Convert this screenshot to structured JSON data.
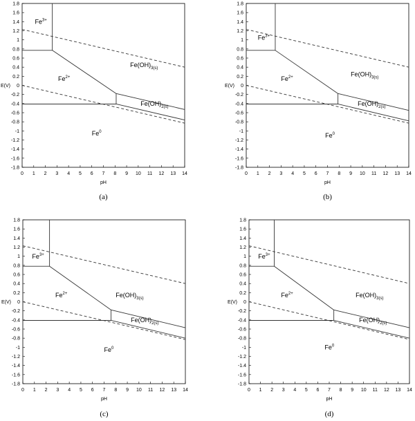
{
  "chart_data": [
    {
      "type": "line",
      "panel_label": "(a)",
      "xlabel": "pH",
      "ylabel": "E(V)",
      "xlim": [
        0,
        14
      ],
      "ylim": [
        -1.8,
        1.8
      ],
      "xticks": [
        0,
        1,
        2,
        3,
        4,
        5,
        6,
        7,
        8,
        9,
        10,
        11,
        12,
        13,
        14
      ],
      "yticks": [
        1.8,
        1.6,
        1.4,
        1.2,
        1,
        0.8,
        0.6,
        0.4,
        0.2,
        0,
        -0.2,
        -0.4,
        -0.6,
        -0.8,
        -1,
        -1.2,
        -1.4,
        -1.6,
        -1.8
      ],
      "grid": false,
      "series": [
        {
          "style": "solid",
          "points": [
            [
              2.6,
              1.8
            ],
            [
              2.6,
              0.77
            ]
          ]
        },
        {
          "style": "solid",
          "points": [
            [
              0,
              0.77
            ],
            [
              2.6,
              0.77
            ]
          ]
        },
        {
          "style": "solid",
          "points": [
            [
              2.6,
              0.77
            ],
            [
              8.1,
              -0.18
            ]
          ]
        },
        {
          "style": "solid",
          "points": [
            [
              8.1,
              -0.18
            ],
            [
              8.1,
              -0.41
            ]
          ]
        },
        {
          "style": "solid",
          "points": [
            [
              0,
              -0.41
            ],
            [
              8.1,
              -0.41
            ]
          ]
        },
        {
          "style": "solid",
          "points": [
            [
              8.1,
              -0.18
            ],
            [
              14,
              -0.53
            ]
          ]
        },
        {
          "style": "solid",
          "points": [
            [
              8.1,
              -0.41
            ],
            [
              14,
              -0.76
            ]
          ]
        },
        {
          "style": "dashed",
          "points": [
            [
              0,
              1.23
            ],
            [
              14,
              0.4
            ]
          ]
        },
        {
          "style": "dashed",
          "points": [
            [
              0,
              0.0
            ],
            [
              14,
              -0.83
            ]
          ]
        }
      ],
      "regions": [
        {
          "main": "Fe",
          "sup": "3+",
          "sub": "",
          "x": 1.1,
          "y": 1.35
        },
        {
          "main": "Fe",
          "sup": "2+",
          "sub": "",
          "x": 3.1,
          "y": 0.1
        },
        {
          "main": "Fe(OH)",
          "sup": "",
          "sub": "3(s)",
          "x": 9.3,
          "y": 0.4
        },
        {
          "main": "Fe(OH)",
          "sup": "",
          "sub": "2(s)",
          "x": 10.2,
          "y": -0.45
        },
        {
          "main": "Fe",
          "sup": "0",
          "sub": "",
          "x": 6.0,
          "y": -1.1
        }
      ]
    },
    {
      "type": "line",
      "panel_label": "(b)",
      "xlabel": "pH",
      "ylabel": "E(V)",
      "xlim": [
        0,
        14
      ],
      "ylim": [
        -1.8,
        1.8
      ],
      "xticks": [
        0,
        1,
        2,
        3,
        4,
        5,
        6,
        7,
        8,
        9,
        10,
        11,
        12,
        13,
        14
      ],
      "yticks": [
        1.8,
        1.6,
        1.4,
        1.2,
        1,
        0.8,
        0.6,
        0.4,
        0.2,
        0,
        -0.2,
        -0.4,
        -0.6,
        -0.8,
        -1,
        -1.2,
        -1.4,
        -1.6,
        -1.8
      ],
      "grid": false,
      "series": [
        {
          "style": "solid",
          "points": [
            [
              2.5,
              1.8
            ],
            [
              2.5,
              0.77
            ]
          ]
        },
        {
          "style": "solid",
          "points": [
            [
              0,
              0.77
            ],
            [
              2.5,
              0.77
            ]
          ]
        },
        {
          "style": "solid",
          "points": [
            [
              2.5,
              0.77
            ],
            [
              7.9,
              -0.18
            ]
          ]
        },
        {
          "style": "solid",
          "points": [
            [
              7.9,
              -0.18
            ],
            [
              7.9,
              -0.41
            ]
          ]
        },
        {
          "style": "solid",
          "points": [
            [
              0,
              -0.41
            ],
            [
              7.9,
              -0.41
            ]
          ]
        },
        {
          "style": "solid",
          "points": [
            [
              7.9,
              -0.18
            ],
            [
              14,
              -0.55
            ]
          ]
        },
        {
          "style": "solid",
          "points": [
            [
              7.9,
              -0.41
            ],
            [
              14,
              -0.78
            ]
          ]
        },
        {
          "style": "dashed",
          "points": [
            [
              0,
              1.23
            ],
            [
              14,
              0.4
            ]
          ]
        },
        {
          "style": "dashed",
          "points": [
            [
              0,
              0.0
            ],
            [
              14,
              -0.83
            ]
          ]
        }
      ],
      "regions": [
        {
          "main": "Fe",
          "sup": "3+",
          "sub": "",
          "x": 1.0,
          "y": 1.0
        },
        {
          "main": "Fe",
          "sup": "2+",
          "sub": "",
          "x": 3.0,
          "y": 0.1
        },
        {
          "main": "Fe(OH)",
          "sup": "",
          "sub": "3(s)",
          "x": 9.0,
          "y": 0.2
        },
        {
          "main": "Fe(OH)",
          "sup": "",
          "sub": "2(s)",
          "x": 9.6,
          "y": -0.45
        },
        {
          "main": "Fe",
          "sup": "0",
          "sub": "",
          "x": 6.8,
          "y": -1.15
        }
      ]
    },
    {
      "type": "line",
      "panel_label": "(c)",
      "xlabel": "pH",
      "ylabel": "E(V)",
      "xlim": [
        0,
        14
      ],
      "ylim": [
        -1.8,
        1.8
      ],
      "xticks": [
        0,
        1,
        2,
        3,
        4,
        5,
        6,
        7,
        8,
        9,
        10,
        11,
        12,
        13,
        14
      ],
      "yticks": [
        1.8,
        1.6,
        1.4,
        1.2,
        1,
        0.8,
        0.6,
        0.4,
        0.2,
        0,
        -0.2,
        -0.4,
        -0.6,
        -0.8,
        -1,
        -1.2,
        -1.4,
        -1.6,
        -1.8
      ],
      "grid": false,
      "series": [
        {
          "style": "solid",
          "points": [
            [
              2.3,
              1.8
            ],
            [
              2.3,
              0.78
            ]
          ]
        },
        {
          "style": "solid",
          "points": [
            [
              0,
              0.78
            ],
            [
              2.3,
              0.78
            ]
          ]
        },
        {
          "style": "solid",
          "points": [
            [
              2.3,
              0.78
            ],
            [
              7.6,
              -0.18
            ]
          ]
        },
        {
          "style": "solid",
          "points": [
            [
              7.6,
              -0.18
            ],
            [
              7.6,
              -0.41
            ]
          ]
        },
        {
          "style": "solid",
          "points": [
            [
              0,
              -0.41
            ],
            [
              7.6,
              -0.41
            ]
          ]
        },
        {
          "style": "solid",
          "points": [
            [
              7.6,
              -0.18
            ],
            [
              14,
              -0.57
            ]
          ]
        },
        {
          "style": "solid",
          "points": [
            [
              7.6,
              -0.41
            ],
            [
              14,
              -0.8
            ]
          ]
        },
        {
          "style": "dashed",
          "points": [
            [
              0,
              1.23
            ],
            [
              14,
              0.4
            ]
          ]
        },
        {
          "style": "dashed",
          "points": [
            [
              0,
              0.0
            ],
            [
              14,
              -0.83
            ]
          ]
        }
      ],
      "regions": [
        {
          "main": "Fe",
          "sup": "3+",
          "sub": "",
          "x": 0.8,
          "y": 0.95
        },
        {
          "main": "Fe",
          "sup": "2+",
          "sub": "",
          "x": 2.8,
          "y": 0.1
        },
        {
          "main": "Fe(OH)",
          "sup": "",
          "sub": "3(s)",
          "x": 8.0,
          "y": 0.1
        },
        {
          "main": "Fe(OH)",
          "sup": "",
          "sub": "2(s)",
          "x": 9.3,
          "y": -0.45
        },
        {
          "main": "Fe",
          "sup": "0",
          "sub": "",
          "x": 7.0,
          "y": -1.1
        }
      ]
    },
    {
      "type": "line",
      "panel_label": "(d)",
      "xlabel": "pH",
      "ylabel": "E(V)",
      "xlim": [
        0,
        14
      ],
      "ylim": [
        -1.8,
        1.8
      ],
      "xticks": [
        0,
        1,
        2,
        3,
        4,
        5,
        6,
        7,
        8,
        9,
        10,
        11,
        12,
        13,
        14
      ],
      "yticks": [
        1.8,
        1.6,
        1.4,
        1.2,
        1,
        0.8,
        0.6,
        0.4,
        0.2,
        0,
        -0.2,
        -0.4,
        -0.6,
        -0.8,
        -1,
        -1.2,
        -1.4,
        -1.6,
        -1.8
      ],
      "grid": false,
      "series": [
        {
          "style": "solid",
          "points": [
            [
              2.2,
              1.8
            ],
            [
              2.2,
              0.78
            ]
          ]
        },
        {
          "style": "solid",
          "points": [
            [
              0,
              0.78
            ],
            [
              2.2,
              0.78
            ]
          ]
        },
        {
          "style": "solid",
          "points": [
            [
              2.2,
              0.78
            ],
            [
              7.4,
              -0.18
            ]
          ]
        },
        {
          "style": "solid",
          "points": [
            [
              7.4,
              -0.18
            ],
            [
              7.4,
              -0.41
            ]
          ]
        },
        {
          "style": "solid",
          "points": [
            [
              0,
              -0.41
            ],
            [
              7.4,
              -0.41
            ]
          ]
        },
        {
          "style": "solid",
          "points": [
            [
              7.4,
              -0.18
            ],
            [
              14,
              -0.57
            ]
          ]
        },
        {
          "style": "solid",
          "points": [
            [
              7.4,
              -0.41
            ],
            [
              14,
              -0.8
            ]
          ]
        },
        {
          "style": "dashed",
          "points": [
            [
              0,
              1.23
            ],
            [
              14,
              0.4
            ]
          ]
        },
        {
          "style": "dashed",
          "points": [
            [
              0,
              0.0
            ],
            [
              14,
              -0.83
            ]
          ]
        }
      ],
      "regions": [
        {
          "main": "Fe",
          "sup": "3+",
          "sub": "",
          "x": 0.8,
          "y": 0.95
        },
        {
          "main": "Fe",
          "sup": "2+",
          "sub": "",
          "x": 2.8,
          "y": 0.1
        },
        {
          "main": "Fe(OH)",
          "sup": "",
          "sub": "3(s)",
          "x": 9.3,
          "y": 0.1
        },
        {
          "main": "Fe(OH)",
          "sup": "",
          "sub": "2(s)",
          "x": 9.6,
          "y": -0.45
        },
        {
          "main": "Fe",
          "sup": "0",
          "sub": "",
          "x": 6.6,
          "y": -1.05
        }
      ]
    }
  ]
}
